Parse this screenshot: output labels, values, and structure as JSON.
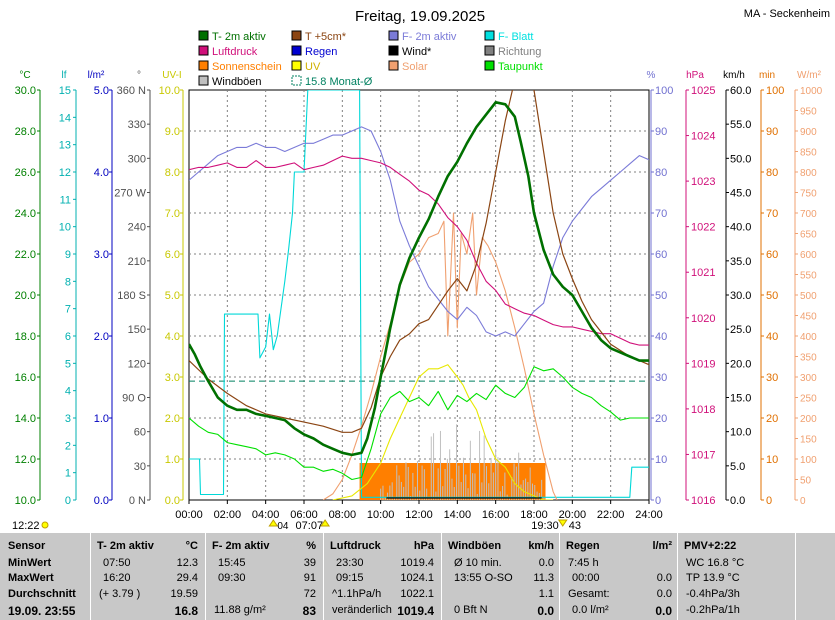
{
  "title": "Freitag, 19.09.2025",
  "station": "MA - Seckenheim",
  "legend": [
    {
      "label": "T- 2m aktiv",
      "color": "#007000",
      "type": "box"
    },
    {
      "label": "T +5cm*",
      "color": "#8b4513",
      "type": "box"
    },
    {
      "label": "F- 2m aktiv",
      "color": "#7b7bd8",
      "type": "box"
    },
    {
      "label": "F- Blatt",
      "color": "#00e0e0",
      "type": "box"
    },
    {
      "label": "Luftdruck",
      "color": "#d0107a",
      "type": "box"
    },
    {
      "label": "Regen",
      "color": "#0000d0",
      "type": "box"
    },
    {
      "label": "Wind*",
      "color": "#000000",
      "type": "box"
    },
    {
      "label": "Richtung",
      "color": "#808080",
      "type": "box"
    },
    {
      "label": "Sonnenschein",
      "color": "#ff7f00",
      "type": "box"
    },
    {
      "label": "UV",
      "color": "#ffff00",
      "type": "box"
    },
    {
      "label": "Solar",
      "color": "#f0a070",
      "type": "box"
    },
    {
      "label": "Taupunkt",
      "color": "#00e000",
      "type": "box"
    },
    {
      "label": "Windböen",
      "color": "#c0c0c0",
      "type": "box"
    },
    {
      "label": "15.8 Monat-Ø",
      "color": "#008060",
      "type": "dash"
    }
  ],
  "axes": {
    "temp": {
      "unit": "°C",
      "color": "#008000",
      "ticks": [
        "30.0",
        "28.0",
        "26.0",
        "24.0",
        "22.0",
        "20.0",
        "18.0",
        "16.0",
        "14.0",
        "12.0",
        "10.0"
      ]
    },
    "blatt": {
      "unit": "lf",
      "color": "#00b0b0",
      "ticks": [
        "15",
        "14",
        "13",
        "12",
        "11",
        "10",
        "9",
        "8",
        "7",
        "6",
        "5",
        "4",
        "3",
        "2",
        "1",
        "0"
      ]
    },
    "rain": {
      "unit": "l/m²",
      "color": "#0000c0",
      "ticks": [
        "5.0",
        "4.0",
        "3.0",
        "2.0",
        "1.0",
        "0.0"
      ]
    },
    "dir": {
      "unit": "°",
      "color": "#505050",
      "ticks": [
        "360 N",
        "330",
        "300",
        "270 W",
        "240",
        "210",
        "180 S",
        "150",
        "120",
        "90 O",
        "60",
        "30",
        "0 N"
      ]
    },
    "uv": {
      "unit": "UV-I",
      "color": "#c8c800",
      "ticks": [
        "10.0",
        "9.0",
        "8.0",
        "7.0",
        "6.0",
        "5.0",
        "4.0",
        "3.0",
        "2.0",
        "1.0",
        "0.0"
      ]
    },
    "hum": {
      "unit": "%",
      "color": "#7070d0",
      "ticks": [
        "100",
        "90",
        "80",
        "70",
        "60",
        "50",
        "40",
        "30",
        "20",
        "10",
        "0"
      ]
    },
    "press": {
      "unit": "hPa",
      "color": "#d0107a",
      "ticks": [
        "1025",
        "1024",
        "1023",
        "1022",
        "1021",
        "1020",
        "1019",
        "1018",
        "1017",
        "1016"
      ]
    },
    "wind": {
      "unit": "km/h",
      "color": "#000000",
      "ticks": [
        "60.0",
        "55.0",
        "50.0",
        "45.0",
        "40.0",
        "35.0",
        "30.0",
        "25.0",
        "20.0",
        "15.0",
        "10.0",
        "5.0",
        "0.0"
      ]
    },
    "min": {
      "unit": "min",
      "color": "#e07000",
      "ticks": [
        "100",
        "90",
        "80",
        "70",
        "60",
        "50",
        "40",
        "30",
        "20",
        "10",
        "0"
      ]
    },
    "solar": {
      "unit": "W/m²",
      "color": "#f0a070",
      "ticks": [
        "1000",
        "950",
        "900",
        "850",
        "800",
        "750",
        "700",
        "650",
        "600",
        "550",
        "500",
        "450",
        "400",
        "350",
        "300",
        "250",
        "200",
        "150",
        "100",
        "50",
        "0"
      ]
    }
  },
  "time_ticks": [
    "00:00",
    "02:00",
    "04:00",
    "06:00",
    "08:00",
    "10:00",
    "12:00",
    "14:00",
    "16:00",
    "18:00",
    "20:00",
    "22:00",
    "24:00"
  ],
  "sun_marks": {
    "rise": "07:07",
    "set": "19:30",
    "moon_rise": "04",
    "moon_set": "43",
    "moon_small_rise": "12:22"
  },
  "chart_data": {
    "type": "line",
    "x_unit": "hours",
    "xlim": [
      0,
      24
    ],
    "monthly_avg_temp": 15.8,
    "series": [
      {
        "name": "T- 2m aktiv",
        "axis": "temp",
        "color": "#007000",
        "width": 2.6,
        "x": [
          0,
          0.3,
          0.6,
          1,
          1.5,
          2,
          2.5,
          3,
          3.5,
          4,
          4.5,
          5,
          5.5,
          6,
          6.5,
          7,
          7.5,
          8,
          8.5,
          9,
          9.3,
          9.7,
          10,
          10.5,
          11,
          11.5,
          12,
          12.5,
          13,
          13.5,
          14,
          14.5,
          15,
          15.5,
          16,
          16.5,
          17,
          17.3,
          17.7,
          18,
          18.5,
          19,
          19.5,
          20,
          20.5,
          21,
          21.5,
          22,
          22.5,
          23,
          23.5,
          24
        ],
        "y": [
          17.6,
          17.1,
          16.5,
          15.8,
          15.0,
          14.6,
          14.4,
          14.4,
          14.2,
          14.1,
          14.0,
          13.9,
          13.5,
          13.2,
          13.0,
          12.7,
          12.5,
          12.3,
          12.2,
          12.3,
          13.0,
          14.5,
          16.0,
          18.4,
          20.5,
          21.8,
          22.8,
          23.7,
          24.8,
          25.8,
          26.5,
          27.4,
          28.2,
          28.8,
          29.4,
          29.3,
          28.7,
          27.5,
          25.8,
          24.0,
          22.2,
          21.0,
          20.4,
          20.0,
          19.2,
          18.4,
          17.8,
          17.4,
          17.2,
          17.0,
          16.8,
          16.8
        ]
      },
      {
        "name": "T +5cm*",
        "axis": "temp",
        "color": "#8b4513",
        "width": 1.2,
        "x": [
          0,
          1,
          2,
          3,
          4,
          5,
          6,
          7,
          8,
          8.5,
          9,
          9.5,
          10,
          10.5,
          11,
          11.5,
          12,
          12.5,
          13,
          13.5,
          14,
          14.5,
          15,
          15.5,
          16,
          16.5,
          17,
          17.5,
          18,
          18.5,
          19,
          19.5,
          20,
          20.5,
          21,
          22,
          23,
          24
        ],
        "y": [
          16.8,
          15.9,
          15.2,
          14.6,
          14.2,
          14.0,
          13.8,
          13.6,
          13.3,
          13.3,
          13.5,
          14.5,
          16.0,
          17.0,
          17.8,
          18.1,
          18.6,
          18.8,
          19.5,
          20.2,
          20.8,
          20.2,
          21.5,
          23.5,
          26.0,
          28.5,
          30.5,
          32.0,
          30.0,
          27.0,
          24.0,
          22.0,
          20.8,
          19.7,
          18.8,
          17.6,
          17.0,
          16.6
        ]
      },
      {
        "name": "Luftdruck",
        "axis": "press",
        "color": "#d0107a",
        "width": 1.1,
        "x": [
          0,
          0.5,
          1,
          1.5,
          2,
          2.5,
          3,
          3.5,
          4,
          4.5,
          5,
          5.5,
          6,
          6.5,
          7,
          7.5,
          8,
          8.5,
          9,
          9.5,
          10,
          10.5,
          11,
          11.5,
          12,
          12.5,
          13,
          13.5,
          14,
          14.5,
          15,
          15.5,
          16,
          16.5,
          17,
          17.5,
          18,
          18.5,
          19,
          19.5,
          20,
          20.5,
          21,
          21.5,
          22,
          22.5,
          23,
          23.5,
          24
        ],
        "y": [
          1023.25,
          1023.3,
          1023.3,
          1023.35,
          1023.4,
          1023.3,
          1023.3,
          1023.45,
          1023.3,
          1023.3,
          1023.35,
          1023.4,
          1023.25,
          1023.3,
          1023.35,
          1023.45,
          1023.55,
          1023.5,
          1023.5,
          1023.45,
          1023.4,
          1023.3,
          1023.15,
          1023.0,
          1022.8,
          1022.7,
          1022.5,
          1022.2,
          1022.0,
          1021.7,
          1021.2,
          1020.8,
          1020.6,
          1020.3,
          1020.2,
          1020.1,
          1020.05,
          1019.95,
          1019.85,
          1019.8,
          1019.8,
          1019.75,
          1019.7,
          1019.65,
          1019.65,
          1019.55,
          1019.45,
          1019.4,
          1019.4
        ]
      },
      {
        "name": "F- 2m aktiv",
        "axis": "hum",
        "color": "#7b7bd8",
        "width": 1.1,
        "x": [
          0,
          0.5,
          1,
          1.5,
          2,
          2.5,
          3,
          3.5,
          4,
          4.5,
          5,
          5.5,
          6,
          6.5,
          7,
          7.5,
          8,
          8.5,
          9,
          9.5,
          10,
          10.5,
          11,
          11.5,
          12,
          12.5,
          13,
          13.5,
          14,
          14.5,
          15,
          15.5,
          16,
          16.5,
          17,
          17.5,
          18,
          18.5,
          19,
          19.5,
          20,
          20.5,
          21,
          21.5,
          22,
          22.5,
          23,
          23.5,
          24
        ],
        "y": [
          78,
          80,
          82,
          84,
          85,
          86,
          86,
          87,
          86,
          86,
          85,
          86,
          87,
          87,
          88,
          89,
          89,
          90,
          91,
          90,
          85,
          78,
          68,
          62,
          57,
          52,
          49,
          46,
          44,
          47,
          45,
          41,
          40,
          41,
          40,
          43,
          46,
          48,
          57,
          64,
          68,
          71,
          74,
          76,
          78,
          80,
          82,
          84,
          83
        ]
      },
      {
        "name": "Taupunkt",
        "axis": "temp",
        "color": "#00e000",
        "width": 1.1,
        "x": [
          0,
          0.5,
          1,
          1.5,
          2,
          2.5,
          3,
          3.5,
          4,
          4.5,
          5,
          5.5,
          6,
          6.5,
          7,
          7.5,
          8,
          8.5,
          9,
          9.5,
          10,
          10.5,
          11,
          11.5,
          12,
          12.5,
          13,
          13.5,
          14,
          14.5,
          15,
          15.5,
          16,
          16.5,
          17,
          17.5,
          18,
          18.5,
          19,
          19.5,
          20,
          20.5,
          21,
          21.5,
          22,
          22.5,
          23,
          23.5,
          24
        ],
        "y": [
          14.0,
          13.6,
          13.3,
          13.2,
          12.8,
          12.7,
          12.6,
          12.5,
          12.2,
          12.3,
          12.2,
          12.0,
          11.6,
          11.6,
          11.4,
          11.5,
          11.3,
          11.0,
          11.1,
          12.5,
          14.2,
          15.0,
          15.3,
          14.8,
          15.0,
          14.6,
          15.3,
          14.4,
          15.1,
          14.8,
          15.2,
          14.9,
          15.6,
          15.2,
          15.0,
          15.5,
          16.5,
          16.3,
          16.4,
          16.0,
          15.5,
          15.2,
          15.0,
          14.6,
          14.3,
          13.9,
          14.0,
          14.0,
          14.0
        ]
      },
      {
        "name": "F- Blatt",
        "axis": "blatt",
        "color": "#00d8d8",
        "width": 1.1,
        "x": [
          0,
          0.55,
          0.6,
          1,
          1.8,
          1.85,
          3.6,
          3.7,
          4,
          4.2,
          4.4,
          4.6,
          4.8,
          5,
          5.2,
          5.4,
          5.5,
          6.0,
          6.2,
          6.5,
          8.9,
          9.0,
          23.0,
          23.1,
          24
        ],
        "y": [
          1.5,
          1.5,
          0.2,
          0.2,
          0.2,
          6.8,
          6.8,
          5.2,
          5.6,
          6.8,
          5.5,
          6.0,
          7.0,
          8.0,
          9.2,
          10.5,
          12.0,
          12.0,
          15.0,
          15.0,
          15.0,
          0.1,
          0.1,
          1.2,
          1.2
        ]
      },
      {
        "name": "Solar",
        "axis": "solar",
        "color": "#f0a070",
        "width": 1.1,
        "x": [
          7,
          7.5,
          8,
          8.5,
          9,
          9.5,
          10,
          10.5,
          11,
          11.5,
          12,
          12.5,
          13,
          13.3,
          13.5,
          13.8,
          14,
          14.2,
          14.5,
          14.8,
          15,
          15.3,
          15.6,
          16,
          16.5,
          17,
          17.5,
          18,
          18.5,
          19,
          19.2
        ],
        "y": [
          0,
          15,
          50,
          110,
          180,
          260,
          350,
          430,
          520,
          580,
          600,
          640,
          650,
          680,
          400,
          700,
          420,
          650,
          600,
          700,
          500,
          640,
          620,
          580,
          510,
          420,
          320,
          210,
          110,
          20,
          0
        ]
      },
      {
        "name": "UV",
        "axis": "uv",
        "color": "#e8e800",
        "width": 1.1,
        "x": [
          7.5,
          8.5,
          9.3,
          10,
          10.5,
          11,
          11.5,
          12,
          12.5,
          13,
          13.5,
          14,
          14.3,
          14.6,
          15,
          15.5,
          16,
          16.5,
          17,
          17.5,
          18,
          18.5,
          19
        ],
        "y": [
          0.0,
          0.1,
          0.4,
          0.9,
          1.5,
          2.0,
          2.5,
          3.0,
          3.2,
          3.2,
          3.3,
          3.0,
          2.8,
          2.5,
          2.2,
          1.5,
          1.0,
          0.8,
          0.4,
          0.2,
          0.1,
          0.0,
          0.0
        ]
      }
    ],
    "wind_baseline": {
      "name": "Wind*",
      "axis": "wind",
      "values_kmh": [
        0.0,
        0.3,
        0.5,
        0.3
      ]
    },
    "wind_gusts": {
      "name": "Windböen",
      "axis": "wind",
      "from": 10,
      "to": 18.6,
      "max_kmh": 11.3
    },
    "sunshine": {
      "name": "Sonnenschein",
      "axis": "min",
      "from": 8.9,
      "to": 18.6,
      "minutes": 10
    },
    "rain": {
      "name": "Regen",
      "axis": "rain",
      "total": 0.0
    }
  },
  "stats": {
    "columns": [
      {
        "header": "Sensor",
        "unit": "",
        "rows": [
          "MinWert",
          "MaxWert",
          "Durchschnitt"
        ],
        "footer": "19.09. 23:55"
      },
      {
        "header": "T- 2m aktiv",
        "unit": "°C",
        "rows": [
          [
            "07:50",
            "12.3"
          ],
          [
            "16:20",
            "29.4"
          ],
          [
            "(+ 3.79 )",
            "19.59"
          ]
        ],
        "footer": [
          "",
          "16.8"
        ]
      },
      {
        "header": "F- 2m aktiv",
        "unit": "%",
        "rows": [
          [
            "15:45",
            "39"
          ],
          [
            "09:30",
            "91"
          ],
          [
            "",
            "72"
          ]
        ],
        "footer": [
          "11.88 g/m²",
          "83"
        ]
      },
      {
        "header": "Luftdruck",
        "unit": "hPa",
        "rows": [
          [
            "23:30",
            "1019.4"
          ],
          [
            "09:15",
            "1024.1"
          ],
          [
            "^1.1hPa/h",
            "1022.1"
          ]
        ],
        "footer": [
          "veränderlich",
          "1019.4"
        ]
      },
      {
        "header": "Windböen",
        "unit": "km/h",
        "rows": [
          [
            "Ø 10 min.",
            "0.0"
          ],
          [
            "13:55  O-SO",
            "11.3"
          ],
          [
            "",
            "1.1"
          ]
        ],
        "footer": [
          "0 Bft N",
          "0.0"
        ]
      },
      {
        "header": "Regen",
        "unit": "l/m²",
        "rows": [
          [
            "7:45 h",
            ""
          ],
          [
            "00:00",
            "0.0"
          ],
          [
            "Gesamt:",
            "0.0"
          ]
        ],
        "footer": [
          "0.0 l/m²",
          "0.0"
        ]
      },
      {
        "header": "PMV+2:22",
        "unit": "",
        "rows": [
          "WC 16.8 °C",
          "TP 13.9 °C",
          "-0.4hPa/3h"
        ],
        "footer": "-0.2hPa/1h"
      }
    ]
  }
}
